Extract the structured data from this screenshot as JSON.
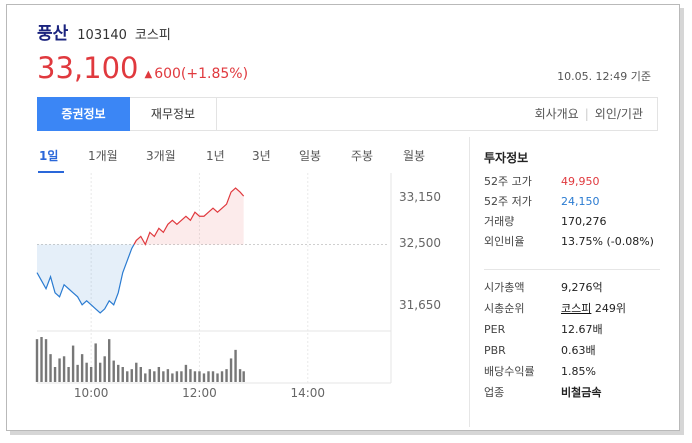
{
  "stock": {
    "name": "풍산",
    "code": "103140",
    "market": "코스피",
    "price": "33,100",
    "change_arrow": "▲",
    "change": "600(+1.85%)",
    "timestamp": "10.05. 12:49 기준"
  },
  "tabs": {
    "main": "증권정보",
    "financial": "재무정보",
    "company": "회사개요",
    "foreign": "외인/기관"
  },
  "periods": [
    "1일",
    "1개월",
    "3개월",
    "1년",
    "3년",
    "일봉",
    "주봉",
    "월봉"
  ],
  "colors": {
    "up": "#e0393e",
    "down": "#2a7bd1",
    "accent": "#3b86f5"
  },
  "chart_data": {
    "type": "line",
    "title": "",
    "xlabel": "",
    "ylabel": "",
    "x_ticks": [
      "10:00",
      "12:00",
      "14:00"
    ],
    "y_ticks": [
      "33,150",
      "32,500",
      "31,650"
    ],
    "ylim": [
      31500,
      33300
    ],
    "baseline": 32500,
    "time_range": [
      "09:00",
      "15:30"
    ],
    "series": [
      {
        "x": [
          "09:00",
          "09:05",
          "09:10",
          "09:15",
          "09:20",
          "09:25",
          "09:30",
          "09:35",
          "09:40",
          "09:45",
          "09:50",
          "09:55",
          "10:00",
          "10:05",
          "10:10",
          "10:15",
          "10:20",
          "10:25",
          "10:30",
          "10:35",
          "10:40",
          "10:45",
          "10:50",
          "10:55",
          "11:00",
          "11:05",
          "11:10",
          "11:15",
          "11:20",
          "11:25",
          "11:30",
          "11:35",
          "11:40",
          "11:45",
          "11:50",
          "11:55",
          "12:00",
          "12:05",
          "12:10",
          "12:15",
          "12:20",
          "12:25",
          "12:30",
          "12:35",
          "12:40",
          "12:45",
          "12:49"
        ],
        "values": [
          32150,
          32050,
          31950,
          32100,
          31900,
          31850,
          32000,
          31950,
          31900,
          31850,
          31750,
          31800,
          31750,
          31700,
          31650,
          31700,
          31800,
          31750,
          31900,
          32150,
          32300,
          32450,
          32550,
          32600,
          32500,
          32650,
          32600,
          32700,
          32650,
          32750,
          32800,
          32750,
          32800,
          32850,
          32800,
          32900,
          32850,
          32850,
          32900,
          32950,
          32900,
          32950,
          33000,
          33150,
          33200,
          33150,
          33100
        ]
      }
    ],
    "volume": [
      40,
      42,
      40,
      26,
      14,
      22,
      24,
      14,
      34,
      16,
      26,
      18,
      14,
      36,
      18,
      24,
      40,
      20,
      16,
      14,
      10,
      12,
      18,
      14,
      8,
      12,
      10,
      14,
      10,
      12,
      8,
      10,
      10,
      16,
      12,
      10,
      10,
      8,
      10,
      10,
      8,
      10,
      12,
      22,
      30,
      12,
      10
    ]
  },
  "info": {
    "title": "투자정보",
    "rows1": [
      {
        "key": "52주 고가",
        "value": "49,950",
        "tone": "red"
      },
      {
        "key": "52주 저가",
        "value": "24,150",
        "tone": "blue"
      },
      {
        "key": "거래량",
        "value": "170,276",
        "tone": ""
      },
      {
        "key": "외인비율",
        "value": "13.75% (-0.08%)",
        "tone": ""
      }
    ],
    "rows2": [
      {
        "key": "시가총액",
        "value": "9,276억"
      },
      {
        "key": "시총순위",
        "value_link": "코스피",
        "value": " 249위"
      },
      {
        "key": "PER",
        "value": "12.67배"
      },
      {
        "key": "PBR",
        "value": "0.63배"
      },
      {
        "key": "배당수익률",
        "value": "1.85%"
      },
      {
        "key": "업종",
        "value": "비철금속"
      }
    ]
  }
}
